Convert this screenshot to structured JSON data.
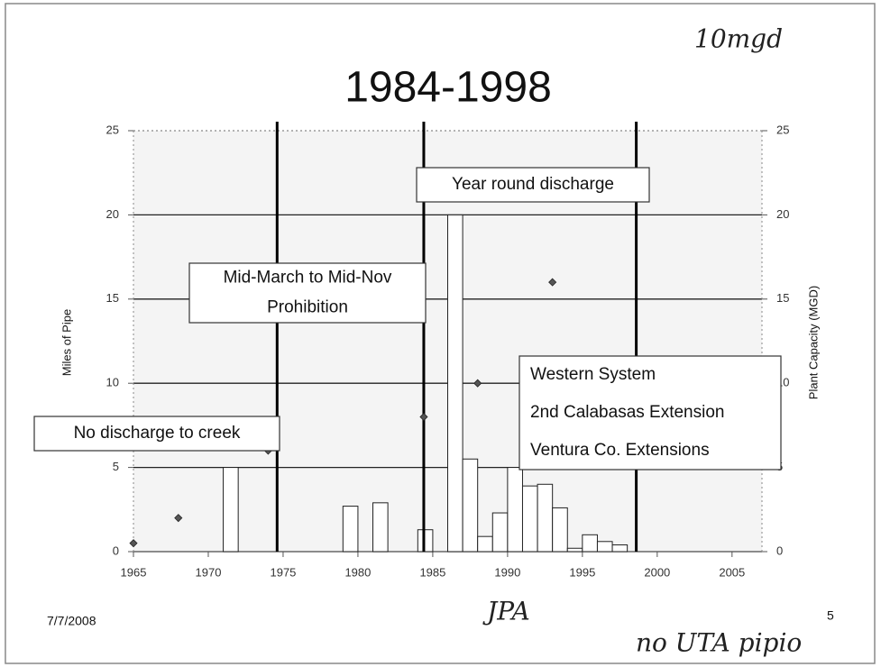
{
  "chart_data": {
    "type": "bar",
    "title": "1984-1998",
    "y_label": "Miles of Pipe",
    "y2_label": "Plant Capacity (MGD)",
    "xlim": [
      1965,
      2007
    ],
    "xticks": [
      1965,
      1970,
      1975,
      1980,
      1985,
      1990,
      1995,
      2000,
      2005
    ],
    "ylim": [
      0,
      25
    ],
    "yticks": [
      0,
      5,
      10,
      15,
      20,
      25
    ],
    "y2lim": [
      0,
      25
    ],
    "y2ticks": [
      0,
      5,
      10,
      15,
      20,
      25
    ],
    "grid": true,
    "bars": {
      "color": "#ffffff",
      "x": [
        1971,
        1979,
        1981,
        1984,
        1986,
        1987,
        1988,
        1989,
        1990,
        1991,
        1992,
        1993,
        1994,
        1995,
        1996,
        1997
      ],
      "values": [
        5,
        2.7,
        2.9,
        1.3,
        20,
        5.5,
        0.9,
        2.3,
        5,
        3.9,
        4,
        2.6,
        0.2,
        1,
        0.6,
        0.4
      ]
    },
    "points": {
      "color": "#555555",
      "axis": "y2",
      "x": [
        1965,
        1968,
        1974,
        1984.4,
        1988,
        1993
      ],
      "values": [
        0.5,
        2,
        6,
        8,
        10,
        16
      ]
    },
    "vlines": [
      1974.6,
      1984.4,
      1998.6
    ],
    "annotations": {
      "creek": [
        "No discharge to creek"
      ],
      "prohibition": [
        "Mid-March to Mid-Nov",
        "Prohibition"
      ],
      "year_round": [
        "Year round discharge"
      ],
      "western": [
        "Western System",
        "2nd Calabasas Extension",
        "Ventura Co. Extensions"
      ]
    },
    "footer_date": "7/7/2008",
    "page_number": "5",
    "handwritten_notes": [
      "10mgd",
      "JPA",
      "no UTA pipio"
    ]
  }
}
